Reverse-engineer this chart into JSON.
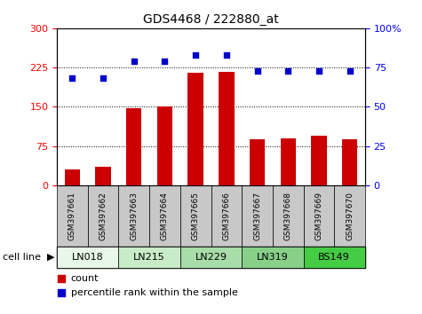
{
  "title": "GDS4468 / 222880_at",
  "samples": [
    "GSM397661",
    "GSM397662",
    "GSM397663",
    "GSM397664",
    "GSM397665",
    "GSM397666",
    "GSM397667",
    "GSM397668",
    "GSM397669",
    "GSM397670"
  ],
  "counts": [
    30,
    35,
    148,
    150,
    215,
    217,
    88,
    90,
    95,
    88
  ],
  "percentiles": [
    68,
    68,
    79,
    79,
    83,
    83,
    73,
    73,
    73,
    73
  ],
  "cell_lines": [
    {
      "label": "LN018",
      "start": 0,
      "end": 2,
      "color": "#e8f8e8"
    },
    {
      "label": "LN215",
      "start": 2,
      "end": 4,
      "color": "#c8ecc8"
    },
    {
      "label": "LN229",
      "start": 4,
      "end": 6,
      "color": "#a8dca8"
    },
    {
      "label": "LN319",
      "start": 6,
      "end": 8,
      "color": "#88d088"
    },
    {
      "label": "BS149",
      "start": 8,
      "end": 10,
      "color": "#44cc44"
    }
  ],
  "bar_color": "#cc0000",
  "dot_color": "#0000cc",
  "left_ylim": [
    0,
    300
  ],
  "right_ylim": [
    0,
    100
  ],
  "left_yticks": [
    0,
    75,
    150,
    225,
    300
  ],
  "right_yticks": [
    0,
    25,
    50,
    75,
    100
  ],
  "grid_values": [
    75,
    150,
    225
  ],
  "bar_width": 0.5,
  "sample_bg": "#c8c8c8"
}
